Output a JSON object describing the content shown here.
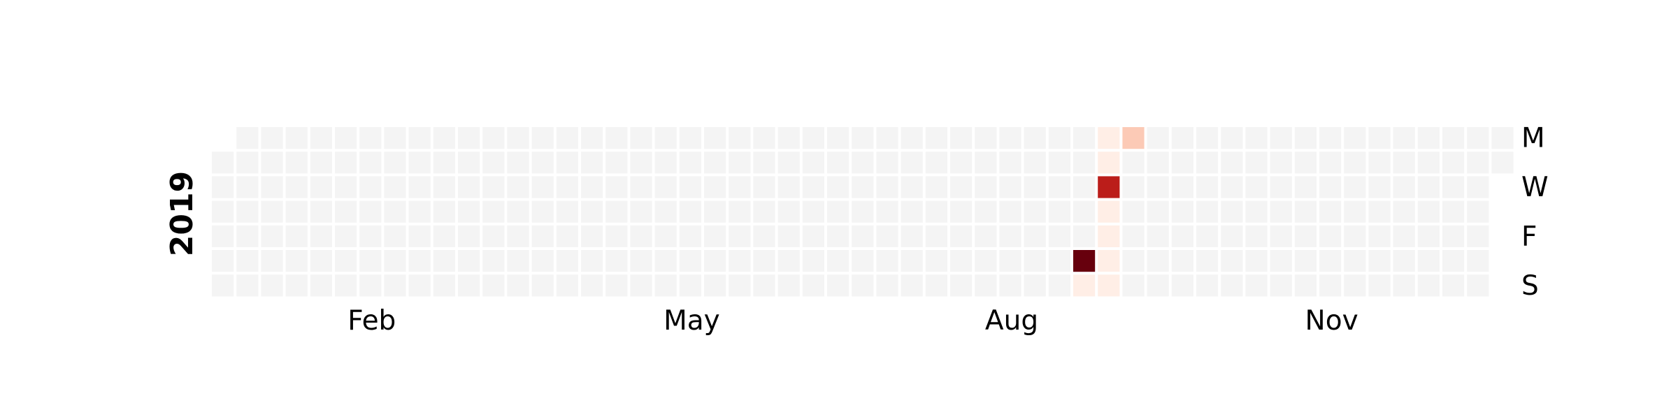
{
  "chart_data": {
    "type": "heatmap",
    "title": "",
    "year_label": "2019",
    "month_ticks": [
      {
        "label": "Feb",
        "week": 6.5
      },
      {
        "label": "May",
        "week": 19.5
      },
      {
        "label": "Aug",
        "week": 32.5
      },
      {
        "label": "Nov",
        "week": 45.5
      }
    ],
    "weekday_ticks": [
      {
        "label": "M",
        "row": 0
      },
      {
        "label": "W",
        "row": 2
      },
      {
        "label": "F",
        "row": 4
      },
      {
        "label": "S",
        "row": 6
      }
    ],
    "grid": {
      "weeks": 53,
      "rows": 7,
      "first_row_first_week": 1,
      "last_row_last_week": 1
    },
    "empty_color": "#f4f4f4",
    "colorscale": [
      "#fff5f0",
      "#fcc5b0",
      "#d7261e",
      "#67000d"
    ],
    "values": [
      {
        "week": 35,
        "row": 5,
        "value": 4
      },
      {
        "week": 35,
        "row": 6,
        "value": 0.2
      },
      {
        "week": 36,
        "row": 0,
        "value": 0.2
      },
      {
        "week": 36,
        "row": 1,
        "value": 0.2
      },
      {
        "week": 36,
        "row": 2,
        "value": 3
      },
      {
        "week": 36,
        "row": 3,
        "value": 0.2
      },
      {
        "week": 36,
        "row": 4,
        "value": 0.2
      },
      {
        "week": 36,
        "row": 5,
        "value": 0.2
      },
      {
        "week": 36,
        "row": 6,
        "value": 0.2
      },
      {
        "week": 37,
        "row": 0,
        "value": 1.2
      }
    ],
    "vmax": 4
  }
}
